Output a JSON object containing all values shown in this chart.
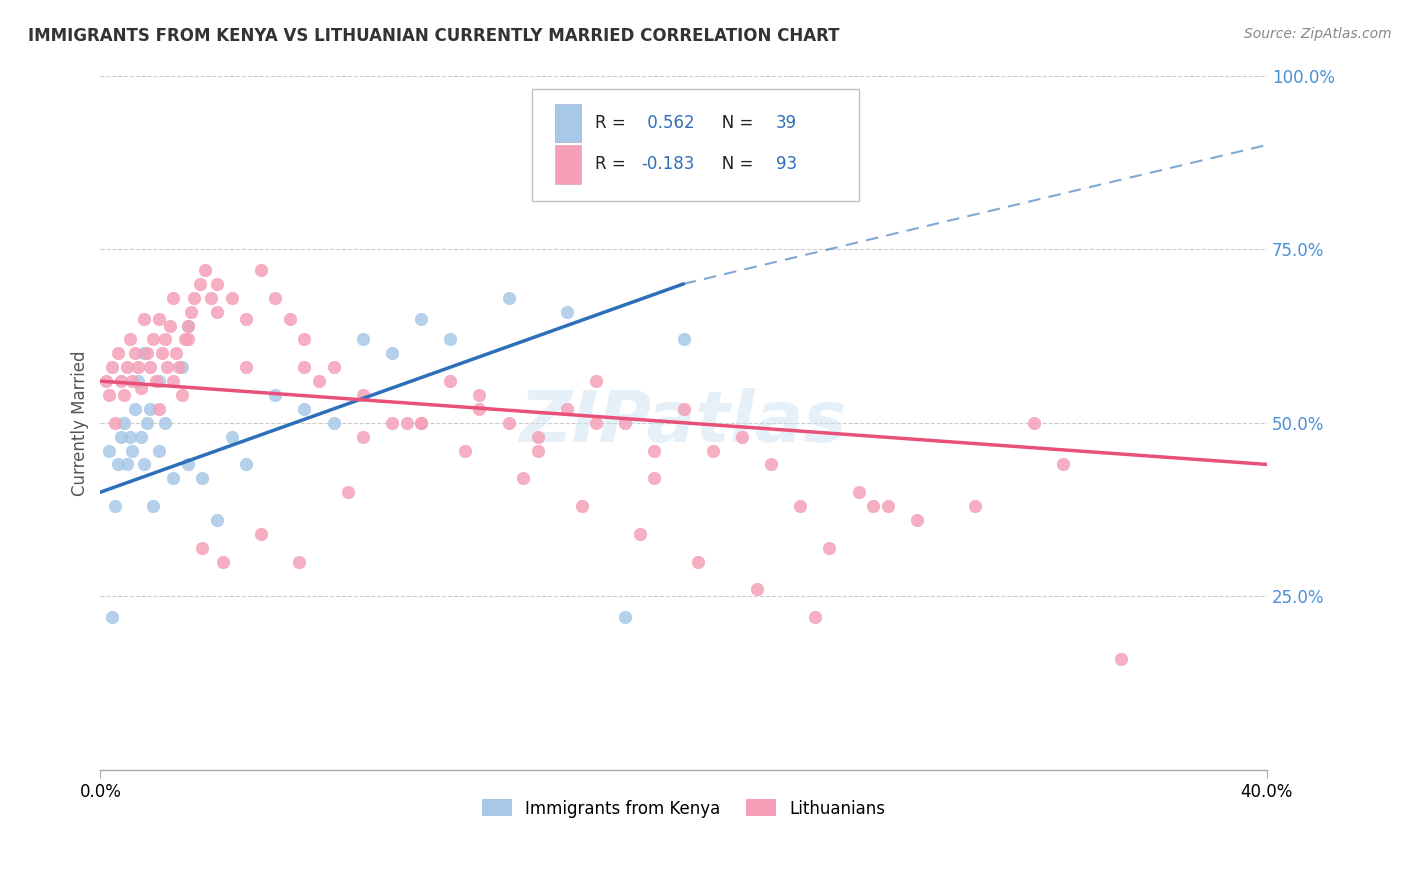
{
  "title": "IMMIGRANTS FROM KENYA VS LITHUANIAN CURRENTLY MARRIED CORRELATION CHART",
  "source": "Source: ZipAtlas.com",
  "ylabel": "Currently Married",
  "xlim": [
    0.0,
    40.0
  ],
  "ylim": [
    0.0,
    100.0
  ],
  "legend_label1": "Immigrants from Kenya",
  "legend_label2": "Lithuanians",
  "R1": 0.562,
  "N1": 39,
  "R2": -0.183,
  "N2": 93,
  "color_blue": "#a8c8e8",
  "color_pink": "#f5a0b8",
  "color_blue_line": "#2e6fba",
  "color_pink_line": "#e8507a",
  "watermark": "ZIPatlas",
  "blue_line_x0": 0.0,
  "blue_line_y0": 40.0,
  "blue_line_x1": 20.0,
  "blue_line_y1": 70.0,
  "blue_line_xd0": 20.0,
  "blue_line_yd0": 70.0,
  "blue_line_xd1": 40.0,
  "blue_line_yd1": 90.0,
  "pink_line_x0": 0.0,
  "pink_line_y0": 56.0,
  "pink_line_x1": 40.0,
  "pink_line_y1": 44.0,
  "blue_scatter_x": [
    0.3,
    0.4,
    0.5,
    0.6,
    0.7,
    0.8,
    0.9,
    1.0,
    1.1,
    1.2,
    1.3,
    1.4,
    1.5,
    1.6,
    1.7,
    1.8,
    2.0,
    2.2,
    2.5,
    3.0,
    3.5,
    4.0,
    4.5,
    5.0,
    6.0,
    7.0,
    8.0,
    9.0,
    10.0,
    11.0,
    12.0,
    14.0,
    16.0,
    18.0,
    20.0,
    3.0,
    2.8,
    1.5,
    2.0
  ],
  "blue_scatter_y": [
    46,
    22,
    38,
    44,
    48,
    50,
    44,
    48,
    46,
    52,
    56,
    48,
    44,
    50,
    52,
    38,
    46,
    50,
    42,
    44,
    42,
    36,
    48,
    44,
    54,
    52,
    50,
    62,
    60,
    65,
    62,
    68,
    66,
    22,
    62,
    64,
    58,
    60,
    56
  ],
  "pink_scatter_x": [
    0.2,
    0.3,
    0.4,
    0.5,
    0.6,
    0.7,
    0.8,
    0.9,
    1.0,
    1.1,
    1.2,
    1.3,
    1.4,
    1.5,
    1.6,
    1.7,
    1.8,
    1.9,
    2.0,
    2.1,
    2.2,
    2.3,
    2.4,
    2.5,
    2.6,
    2.7,
    2.8,
    2.9,
    3.0,
    3.1,
    3.2,
    3.4,
    3.6,
    3.8,
    4.0,
    4.5,
    5.0,
    5.5,
    6.0,
    6.5,
    7.0,
    7.5,
    8.0,
    9.0,
    10.0,
    11.0,
    12.0,
    13.0,
    14.0,
    15.0,
    16.0,
    17.0,
    18.0,
    19.0,
    20.0,
    21.0,
    22.0,
    23.0,
    24.0,
    25.0,
    26.0,
    27.0,
    28.0,
    30.0,
    32.0,
    33.0,
    35.0,
    5.5,
    4.2,
    3.5,
    6.8,
    8.5,
    10.5,
    12.5,
    14.5,
    16.5,
    18.5,
    20.5,
    22.5,
    24.5,
    26.5,
    2.0,
    2.5,
    3.0,
    4.0,
    5.0,
    7.0,
    9.0,
    11.0,
    13.0,
    15.0,
    17.0,
    19.0
  ],
  "pink_scatter_y": [
    56,
    54,
    58,
    50,
    60,
    56,
    54,
    58,
    62,
    56,
    60,
    58,
    55,
    65,
    60,
    58,
    62,
    56,
    65,
    60,
    62,
    58,
    64,
    68,
    60,
    58,
    54,
    62,
    64,
    66,
    68,
    70,
    72,
    68,
    70,
    68,
    65,
    72,
    68,
    65,
    62,
    56,
    58,
    54,
    50,
    50,
    56,
    52,
    50,
    48,
    52,
    56,
    50,
    46,
    52,
    46,
    48,
    44,
    38,
    32,
    40,
    38,
    36,
    38,
    50,
    44,
    16,
    34,
    30,
    32,
    30,
    40,
    50,
    46,
    42,
    38,
    34,
    30,
    26,
    22,
    38,
    52,
    56,
    62,
    66,
    58,
    58,
    48,
    50,
    54,
    46,
    50,
    42
  ]
}
